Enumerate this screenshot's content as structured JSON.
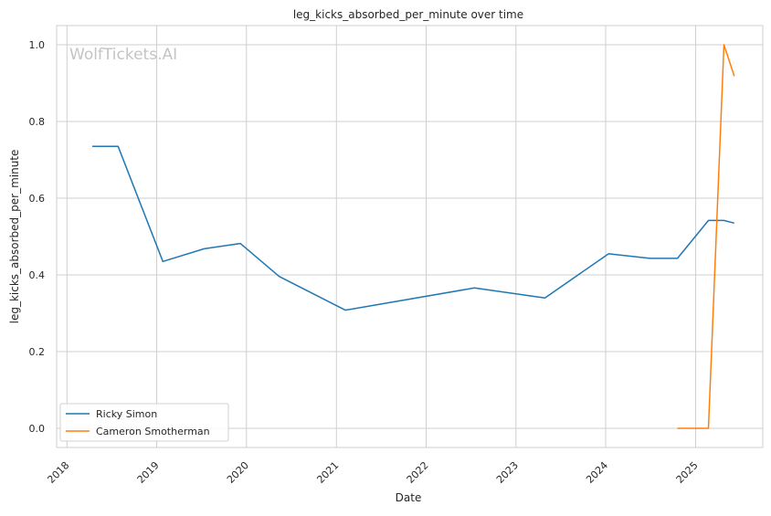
{
  "chart_data": {
    "type": "line",
    "title": "leg_kicks_absorbed_per_minute over time",
    "xlabel": "Date",
    "ylabel": "leg_kicks_absorbed_per_minute",
    "watermark": "WolfTickets.AI",
    "grid": true,
    "legend_position": "lower-left",
    "xlim": [
      "2017-11-20",
      "2025-10-01"
    ],
    "ylim": [
      -0.05,
      1.05
    ],
    "x_ticks": [
      "2018",
      "2019",
      "2020",
      "2021",
      "2022",
      "2023",
      "2024",
      "2025"
    ],
    "y_ticks": [
      "0.0",
      "0.2",
      "0.4",
      "0.6",
      "0.8",
      "1.0"
    ],
    "series": [
      {
        "name": "Ricky Simon",
        "color": "#1f77b4",
        "points": [
          {
            "x": "2018-04-14",
            "y": 0.735
          },
          {
            "x": "2018-07-28",
            "y": 0.735
          },
          {
            "x": "2019-01-26",
            "y": 0.435
          },
          {
            "x": "2019-07-13",
            "y": 0.468
          },
          {
            "x": "2019-12-07",
            "y": 0.482
          },
          {
            "x": "2020-05-13",
            "y": 0.396
          },
          {
            "x": "2021-02-06",
            "y": 0.308
          },
          {
            "x": "2022-07-16",
            "y": 0.366
          },
          {
            "x": "2023-04-29",
            "y": 0.34
          },
          {
            "x": "2024-01-13",
            "y": 0.455
          },
          {
            "x": "2024-06-29",
            "y": 0.443
          },
          {
            "x": "2024-10-19",
            "y": 0.443
          },
          {
            "x": "2025-02-22",
            "y": 0.542
          },
          {
            "x": "2025-04-26",
            "y": 0.542
          },
          {
            "x": "2025-06-07",
            "y": 0.535
          }
        ]
      },
      {
        "name": "Cameron Smotherman",
        "color": "#ff7f0e",
        "points": [
          {
            "x": "2024-10-19",
            "y": 0.0
          },
          {
            "x": "2025-02-22",
            "y": 0.0
          },
          {
            "x": "2025-04-26",
            "y": 1.0
          },
          {
            "x": "2025-06-07",
            "y": 0.918
          }
        ]
      }
    ]
  }
}
